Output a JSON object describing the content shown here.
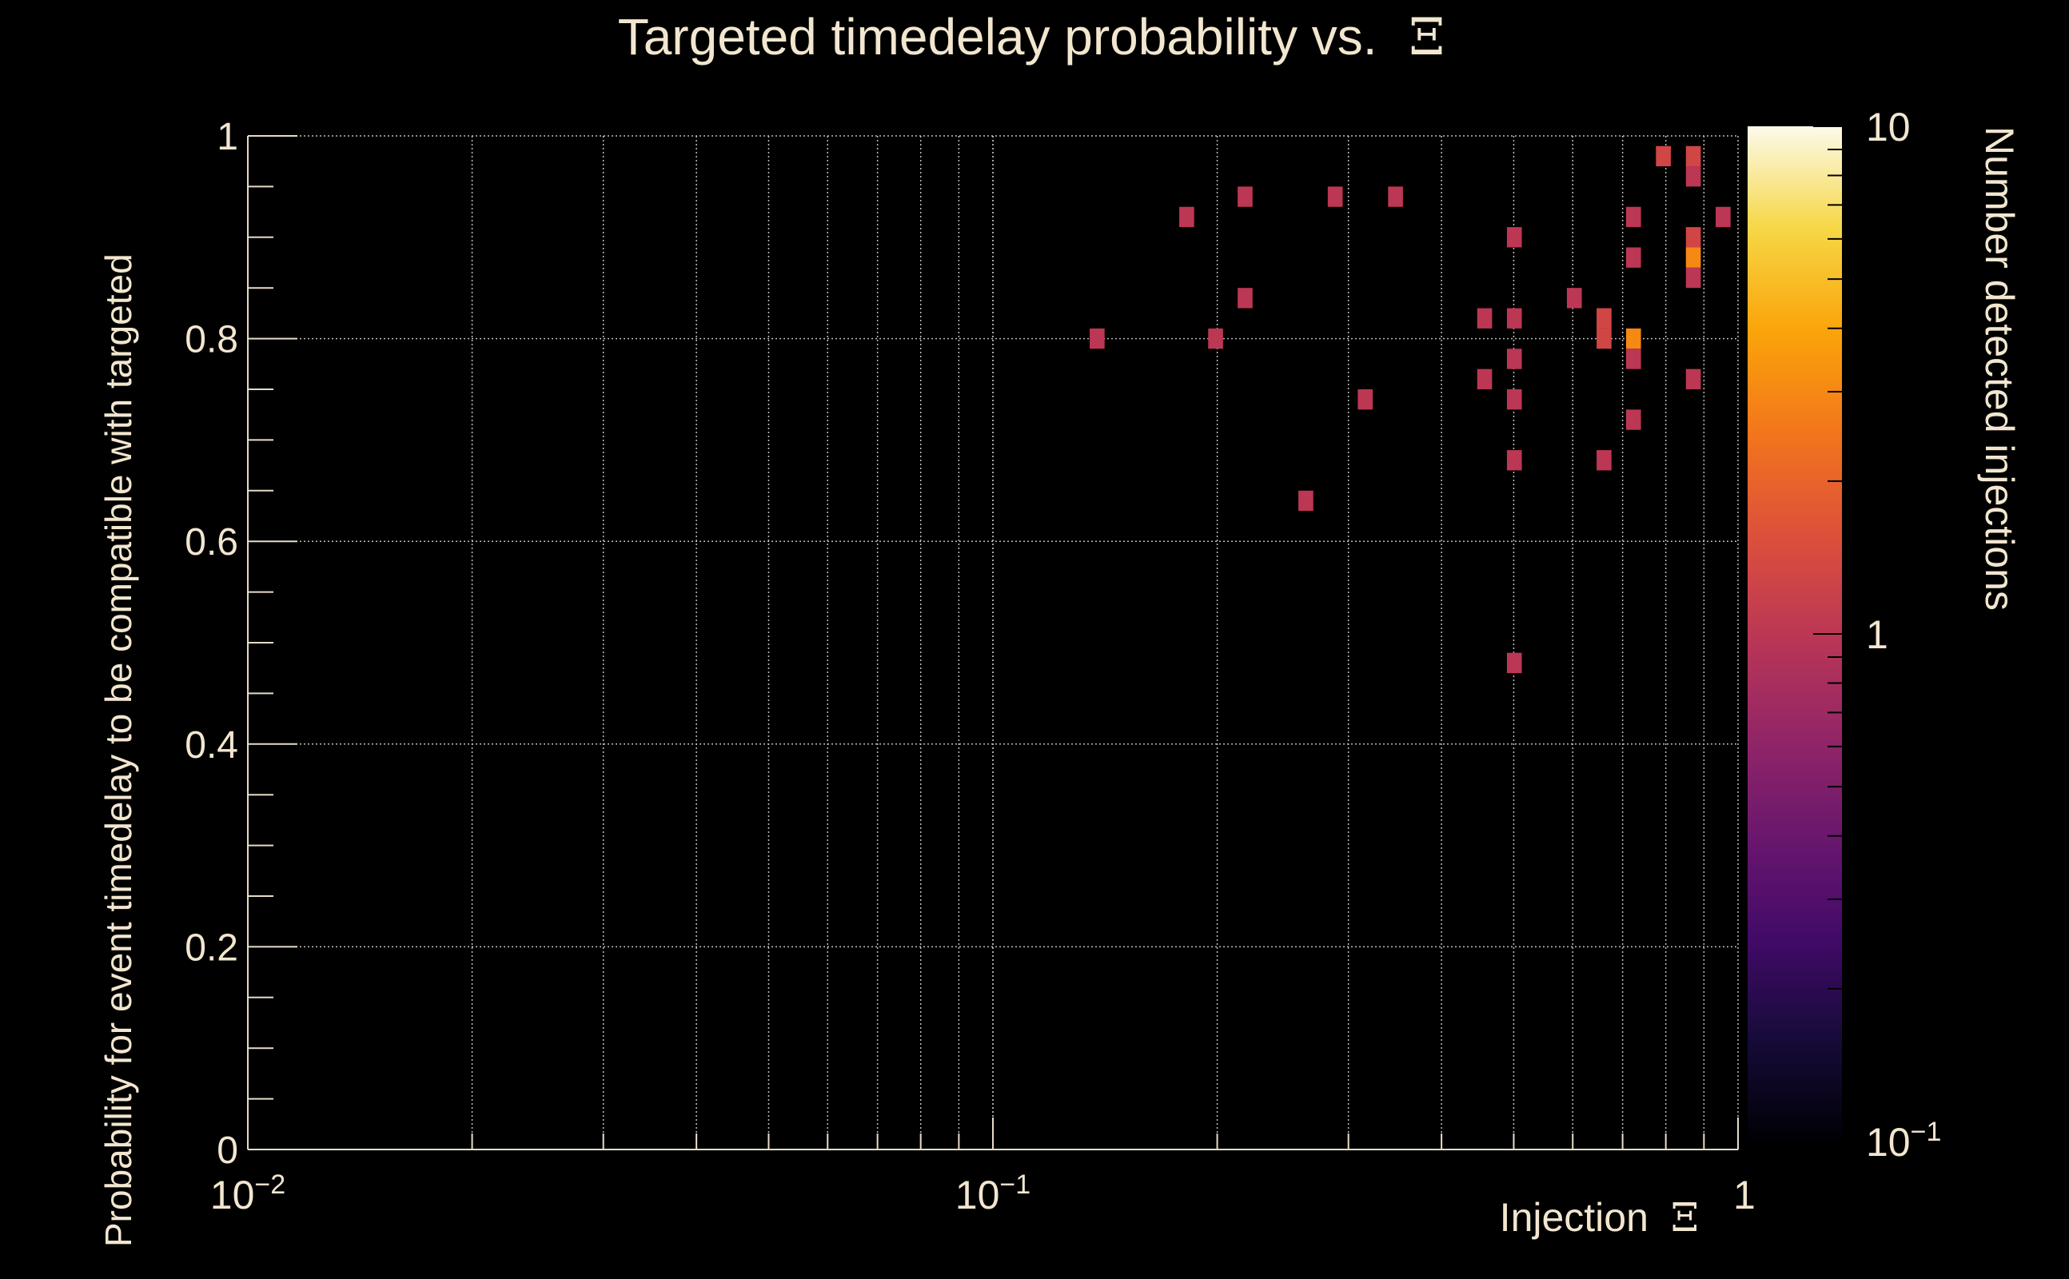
{
  "colors": {
    "background": "#000000",
    "text": "#f2e6cf",
    "grid": "#bdbdbd",
    "axis": "#e6dcc8"
  },
  "chart_data": {
    "type": "heatmap",
    "title": "Targeted timedelay probability vs.",
    "title_symbol": "Ξ",
    "xlabel": "Injection",
    "xlabel_symbol": "Ξ",
    "ylabel": "Probability for event timedelay to be compatible with targeted",
    "zlabel": "Number detected injections",
    "xscale": "log",
    "zscale": "log",
    "xlim": [
      0.01,
      1
    ],
    "ylim": [
      0,
      1
    ],
    "zlim": [
      0.1,
      10
    ],
    "grid": true,
    "x_tick_labels": [
      {
        "value": 0.01,
        "base": "10",
        "exp": "−2"
      },
      {
        "value": 0.1,
        "base": "10",
        "exp": "−1"
      },
      {
        "value": 1,
        "base": "1",
        "exp": ""
      }
    ],
    "y_tick_labels": [
      "0",
      "0.2",
      "0.4",
      "0.6",
      "0.8",
      "1"
    ],
    "z_tick_labels": [
      {
        "value": 0.1,
        "base": "10",
        "exp": "−1"
      },
      {
        "value": 1,
        "base": "1",
        "exp": ""
      },
      {
        "value": 10,
        "base": "10",
        "exp": ""
      }
    ],
    "bin_width_y": 0.02,
    "bin_width_logx": 0.02,
    "bins": [
      {
        "x": 0.138,
        "y": 0.8,
        "count": 1
      },
      {
        "x": 0.182,
        "y": 0.92,
        "count": 1
      },
      {
        "x": 0.199,
        "y": 0.8,
        "count": 1
      },
      {
        "x": 0.218,
        "y": 0.94,
        "count": 1
      },
      {
        "x": 0.218,
        "y": 0.84,
        "count": 1
      },
      {
        "x": 0.263,
        "y": 0.64,
        "count": 1
      },
      {
        "x": 0.288,
        "y": 0.94,
        "count": 1
      },
      {
        "x": 0.316,
        "y": 0.74,
        "count": 1
      },
      {
        "x": 0.347,
        "y": 0.94,
        "count": 1
      },
      {
        "x": 0.457,
        "y": 0.82,
        "count": 1
      },
      {
        "x": 0.457,
        "y": 0.76,
        "count": 1
      },
      {
        "x": 0.501,
        "y": 0.9,
        "count": 1
      },
      {
        "x": 0.501,
        "y": 0.82,
        "count": 1
      },
      {
        "x": 0.501,
        "y": 0.78,
        "count": 1
      },
      {
        "x": 0.501,
        "y": 0.74,
        "count": 1
      },
      {
        "x": 0.501,
        "y": 0.68,
        "count": 1
      },
      {
        "x": 0.501,
        "y": 0.48,
        "count": 1
      },
      {
        "x": 0.603,
        "y": 0.84,
        "count": 1
      },
      {
        "x": 0.661,
        "y": 0.82,
        "count": 1.3
      },
      {
        "x": 0.661,
        "y": 0.8,
        "count": 1.3
      },
      {
        "x": 0.661,
        "y": 0.68,
        "count": 1
      },
      {
        "x": 0.724,
        "y": 0.92,
        "count": 1
      },
      {
        "x": 0.724,
        "y": 0.88,
        "count": 1
      },
      {
        "x": 0.724,
        "y": 0.8,
        "count": 3
      },
      {
        "x": 0.724,
        "y": 0.78,
        "count": 1
      },
      {
        "x": 0.724,
        "y": 0.72,
        "count": 1
      },
      {
        "x": 0.794,
        "y": 0.98,
        "count": 1.3
      },
      {
        "x": 0.871,
        "y": 0.98,
        "count": 1.3
      },
      {
        "x": 0.871,
        "y": 0.96,
        "count": 1
      },
      {
        "x": 0.871,
        "y": 0.9,
        "count": 1.3
      },
      {
        "x": 0.871,
        "y": 0.88,
        "count": 3
      },
      {
        "x": 0.871,
        "y": 0.86,
        "count": 1
      },
      {
        "x": 0.871,
        "y": 0.76,
        "count": 1
      },
      {
        "x": 0.955,
        "y": 0.92,
        "count": 1
      }
    ]
  }
}
